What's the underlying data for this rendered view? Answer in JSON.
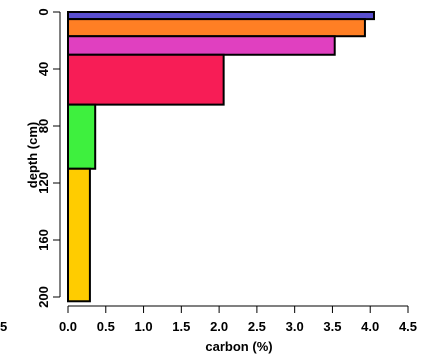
{
  "chart_data": {
    "type": "bar",
    "orientation": "horizontal",
    "title": "",
    "xlabel": "carbon (%)",
    "ylabel": "depth (cm)",
    "xlim": [
      0,
      4.5
    ],
    "ylim_reversed": [
      0,
      200
    ],
    "x_ticks": [
      "0.0",
      "0.5",
      "1.0",
      "1.5",
      "2.0",
      "2.5",
      "3.0",
      "3.5",
      "4.0",
      "4.5"
    ],
    "y_ticks": [
      "0",
      "40",
      "80",
      "120",
      "160",
      "200"
    ],
    "clipped_left_tick_fragment": "5",
    "grid": false,
    "legend": "none",
    "bars": [
      {
        "top": 0,
        "bottom": 5,
        "value": 4.05,
        "color": "#5a4fcf"
      },
      {
        "top": 5,
        "bottom": 17,
        "value": 3.93,
        "color": "#ff7f24"
      },
      {
        "top": 17,
        "bottom": 30,
        "value": 3.53,
        "color": "#e040c0"
      },
      {
        "top": 30,
        "bottom": 65,
        "value": 2.06,
        "color": "#f71d56"
      },
      {
        "top": 65,
        "bottom": 110,
        "value": 0.36,
        "color": "#3ef03e"
      },
      {
        "top": 110,
        "bottom": 203,
        "value": 0.29,
        "color": "#ffcc00"
      }
    ]
  }
}
